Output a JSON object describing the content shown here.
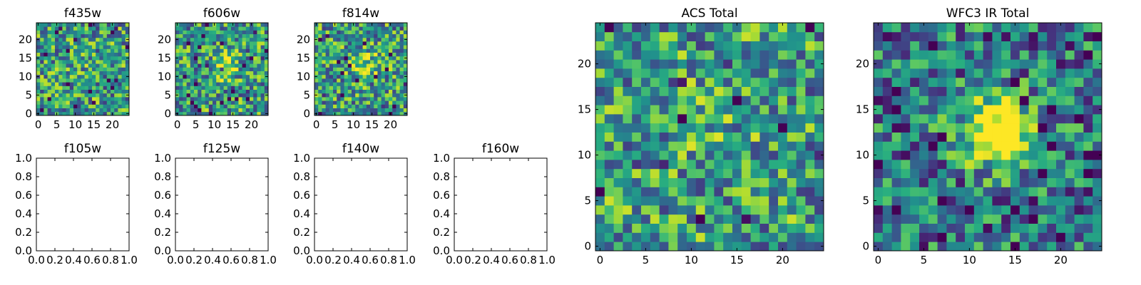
{
  "chart_data": [
    {
      "type": "heatmap",
      "title": "f435w",
      "xlim": [
        -0.5,
        24.5
      ],
      "ylim": [
        -0.5,
        24.5
      ],
      "xticks": [
        0,
        5,
        10,
        15,
        20
      ],
      "yticks": [
        0,
        5,
        10,
        15,
        20
      ],
      "colormap": "viridis",
      "values": "noise image 25x25, no visible source",
      "seed": 11,
      "source_strength": 0.05
    },
    {
      "type": "heatmap",
      "title": "f606w",
      "xlim": [
        -0.5,
        24.5
      ],
      "ylim": [
        -0.5,
        24.5
      ],
      "xticks": [
        0,
        5,
        10,
        15,
        20
      ],
      "yticks": [
        0,
        5,
        10,
        15,
        20
      ],
      "colormap": "viridis",
      "values": "noise image 25x25, faint source near (13,13)",
      "seed": 23,
      "source_strength": 0.25
    },
    {
      "type": "heatmap",
      "title": "f814w",
      "xlim": [
        -0.5,
        24.5
      ],
      "ylim": [
        -0.5,
        24.5
      ],
      "xticks": [
        0,
        5,
        10,
        15,
        20
      ],
      "yticks": [
        0,
        5,
        10,
        15,
        20
      ],
      "colormap": "viridis",
      "values": "noise image 25x25, faint source near (13,13)",
      "seed": 37,
      "source_strength": 0.3
    },
    {
      "type": "empty",
      "title": "f105w",
      "xlim": [
        0,
        1
      ],
      "ylim": [
        0,
        1
      ],
      "xticks": [
        0.0,
        0.2,
        0.4,
        0.6,
        0.8,
        1.0
      ],
      "yticks": [
        0.0,
        0.2,
        0.4,
        0.6,
        0.8,
        1.0
      ]
    },
    {
      "type": "empty",
      "title": "f125w",
      "xlim": [
        0,
        1
      ],
      "ylim": [
        0,
        1
      ],
      "xticks": [
        0.0,
        0.2,
        0.4,
        0.6,
        0.8,
        1.0
      ],
      "yticks": [
        0.0,
        0.2,
        0.4,
        0.6,
        0.8,
        1.0
      ]
    },
    {
      "type": "empty",
      "title": "f140w",
      "xlim": [
        0,
        1
      ],
      "ylim": [
        0,
        1
      ],
      "xticks": [
        0.0,
        0.2,
        0.4,
        0.6,
        0.8,
        1.0
      ],
      "yticks": [
        0.0,
        0.2,
        0.4,
        0.6,
        0.8,
        1.0
      ]
    },
    {
      "type": "empty",
      "title": "f160w",
      "xlim": [
        0,
        1
      ],
      "ylim": [
        0,
        1
      ],
      "xticks": [
        0.0,
        0.2,
        0.4,
        0.6,
        0.8,
        1.0
      ],
      "yticks": [
        0.0,
        0.2,
        0.4,
        0.6,
        0.8,
        1.0
      ]
    },
    {
      "type": "heatmap",
      "title": "ACS Total",
      "xlim": [
        -0.5,
        24.5
      ],
      "ylim": [
        -0.5,
        24.5
      ],
      "xticks": [
        0,
        5,
        10,
        15,
        20
      ],
      "yticks": [
        0,
        5,
        10,
        15,
        20
      ],
      "colormap": "viridis",
      "values": "noise image 25x25, mostly high values",
      "seed": 53,
      "source_strength": 0.1
    },
    {
      "type": "heatmap",
      "title": "WFC3 IR Total",
      "xlim": [
        -0.5,
        24.5
      ],
      "ylim": [
        -0.5,
        24.5
      ],
      "xticks": [
        0,
        5,
        10,
        15,
        20
      ],
      "yticks": [
        0,
        5,
        10,
        15,
        20
      ],
      "colormap": "viridis",
      "values": "noise image 25x25, bright source centered near (13,13)",
      "seed": 71,
      "source_strength": 0.85
    }
  ],
  "viridis": [
    "#440154",
    "#472d7b",
    "#3b528b",
    "#2c728e",
    "#21918c",
    "#28ae80",
    "#5ec962",
    "#addc30",
    "#fde725"
  ]
}
